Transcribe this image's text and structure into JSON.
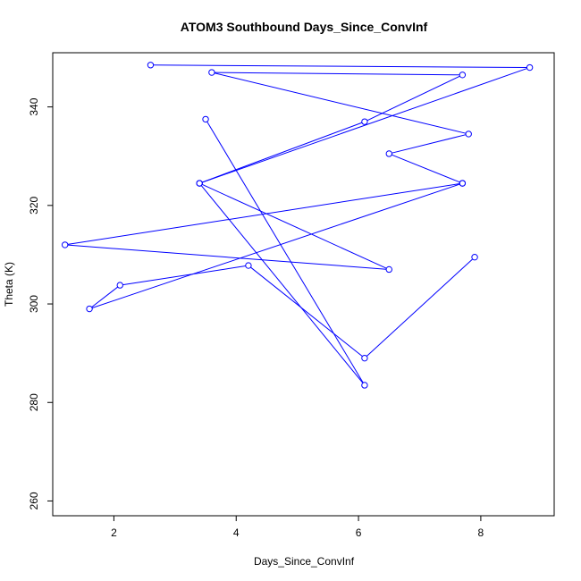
{
  "chart_data": {
    "type": "line",
    "title": "ATOM3 Southbound Days_Since_ConvInf",
    "xlabel": "Days_Since_ConvInf",
    "ylabel": "Theta (K)",
    "xlim": [
      1.0,
      9.2
    ],
    "ylim": [
      257,
      351
    ],
    "xticks": [
      2,
      4,
      6,
      8
    ],
    "yticks": [
      260,
      280,
      300,
      320,
      340
    ],
    "grid": false,
    "line_color": "#0000ff",
    "series": [
      {
        "x": [
          2.6,
          8.8,
          3.4,
          6.1,
          7.7,
          3.6,
          7.8,
          6.5,
          7.7,
          1.6,
          2.1,
          4.2,
          6.1,
          7.9
        ],
        "y": [
          348.5,
          348.0,
          324.5,
          337.0,
          346.5,
          347.0,
          334.5,
          330.5,
          324.5,
          299.0,
          303.8,
          307.8,
          289.0,
          309.5
        ]
      },
      {
        "x": [
          3.5,
          6.1,
          3.4,
          6.5,
          1.2,
          7.7
        ],
        "y": [
          337.5,
          283.5,
          324.5,
          307.0,
          312.0,
          324.5
        ]
      }
    ]
  }
}
